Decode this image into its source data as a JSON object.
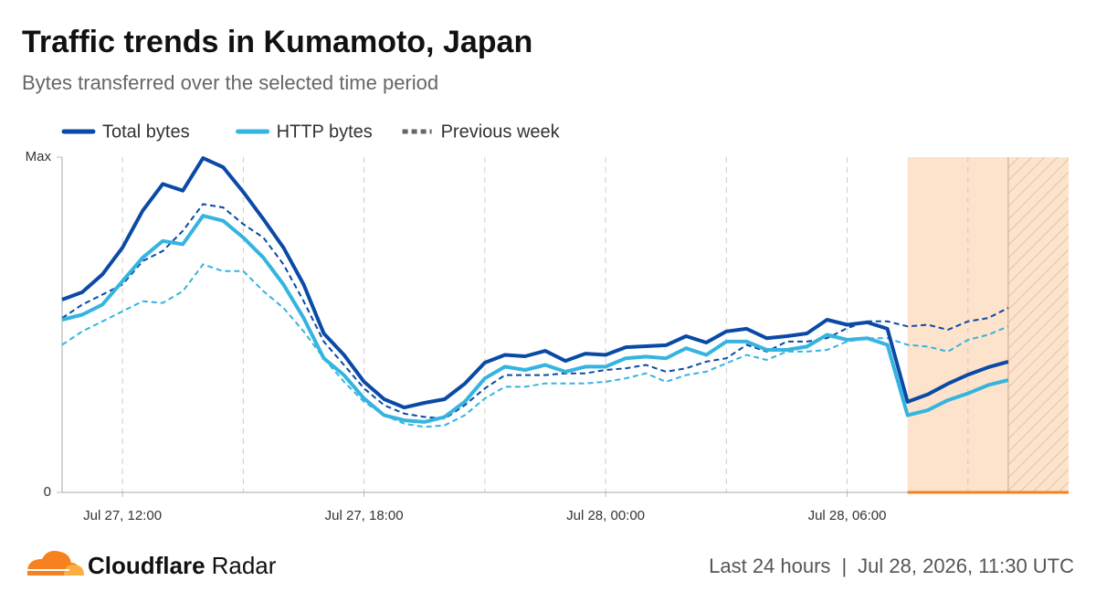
{
  "chart_data": {
    "type": "line",
    "title": "Traffic trends in Kumamoto, Japan",
    "subtitle": "Bytes transferred over the selected time period",
    "x": [
      10.5,
      11,
      11.5,
      12,
      12.5,
      13,
      13.5,
      14,
      14.5,
      15,
      15.5,
      16,
      16.5,
      17,
      17.5,
      18,
      18.5,
      19,
      19.5,
      20,
      20.5,
      21,
      21.5,
      22,
      22.5,
      23,
      23.5,
      24,
      24.5,
      25,
      25.5,
      26,
      26.5,
      27,
      27.5,
      28,
      28.5,
      29,
      29.5,
      30,
      30.5,
      31,
      31.5,
      32,
      32.5,
      33,
      33.5,
      34
    ],
    "series": [
      {
        "name": "Total bytes",
        "color": "#0a4aa6",
        "values": [
          57.5,
          59.7,
          65,
          73,
          84,
          92,
          90,
          99.7,
          97,
          89.6,
          81.5,
          73,
          62,
          47.4,
          41,
          33,
          27.8,
          25.3,
          26.7,
          27.8,
          32.4,
          38.7,
          41,
          40.6,
          42.2,
          39.2,
          41.4,
          41,
          43.3,
          43.6,
          43.9,
          46.6,
          44.7,
          48,
          48.8,
          46,
          46.6,
          47.4,
          51.5,
          50,
          50.7,
          48.8,
          27,
          29.2,
          32.4,
          35.1,
          37.3,
          39
        ],
        "previous_values": [
          52,
          56,
          59,
          62,
          69,
          72,
          78,
          86,
          85,
          80,
          76,
          68,
          57,
          45,
          38,
          31,
          26,
          23.5,
          22.5,
          22,
          26,
          31,
          35,
          35,
          35,
          35.5,
          35.5,
          36.5,
          37,
          38,
          36,
          37,
          39,
          40,
          44,
          42,
          45,
          45,
          46,
          49,
          51,
          51,
          49.5,
          50,
          48.5,
          51,
          52,
          55
        ]
      },
      {
        "name": "HTTP bytes",
        "color": "#35b4e0",
        "values": [
          51.5,
          53,
          56,
          63,
          70,
          75,
          74,
          82.5,
          81,
          76,
          70,
          62,
          52,
          40,
          35,
          28,
          23,
          21.5,
          21,
          22.5,
          27,
          34,
          37.5,
          36.5,
          38,
          36,
          37.5,
          37.5,
          40,
          40.5,
          40,
          43,
          41,
          45,
          45,
          42.5,
          42.5,
          43.5,
          47,
          45.5,
          46,
          44,
          23,
          24.5,
          27.5,
          29.5,
          32,
          33.5
        ],
        "previous_values": [
          44,
          48,
          51,
          54,
          57,
          56.5,
          60,
          68,
          66,
          66,
          60,
          55,
          48,
          40,
          33,
          27,
          23,
          20.5,
          19.5,
          20,
          23,
          28,
          31.5,
          31.5,
          32.5,
          32.5,
          32.5,
          33,
          34,
          35.5,
          33,
          35,
          36,
          38.5,
          41,
          39.5,
          42,
          42,
          42.5,
          45,
          46,
          46,
          44,
          43.5,
          42,
          45.5,
          47,
          49.5
        ]
      }
    ],
    "previous_label": "Previous week",
    "xlim": [
      10.5,
      35.5
    ],
    "xticks": [
      {
        "value": 12,
        "label": "Jul 27, 12:00"
      },
      {
        "value": 18,
        "label": "Jul 27, 18:00"
      },
      {
        "value": 24,
        "label": "Jul 28, 00:00"
      },
      {
        "value": 30,
        "label": "Jul 28, 06:00"
      }
    ],
    "xgrid": [
      12,
      15,
      18,
      21,
      24,
      27,
      30,
      33
    ],
    "ylim": [
      0,
      100
    ],
    "yticks": [
      0,
      {
        "value": 100,
        "label": "Max"
      }
    ],
    "highlight_range": [
      31.5,
      35.5
    ],
    "hatched_range": [
      34,
      35.5
    ],
    "highlight_color": "#fde3cb",
    "footer": {
      "brand_bold": "Cloudflare",
      "brand": "Radar",
      "period": "Last 24 hours",
      "separator": "|",
      "timestamp": "Jul 28, 2026, 11:30 UTC"
    }
  }
}
